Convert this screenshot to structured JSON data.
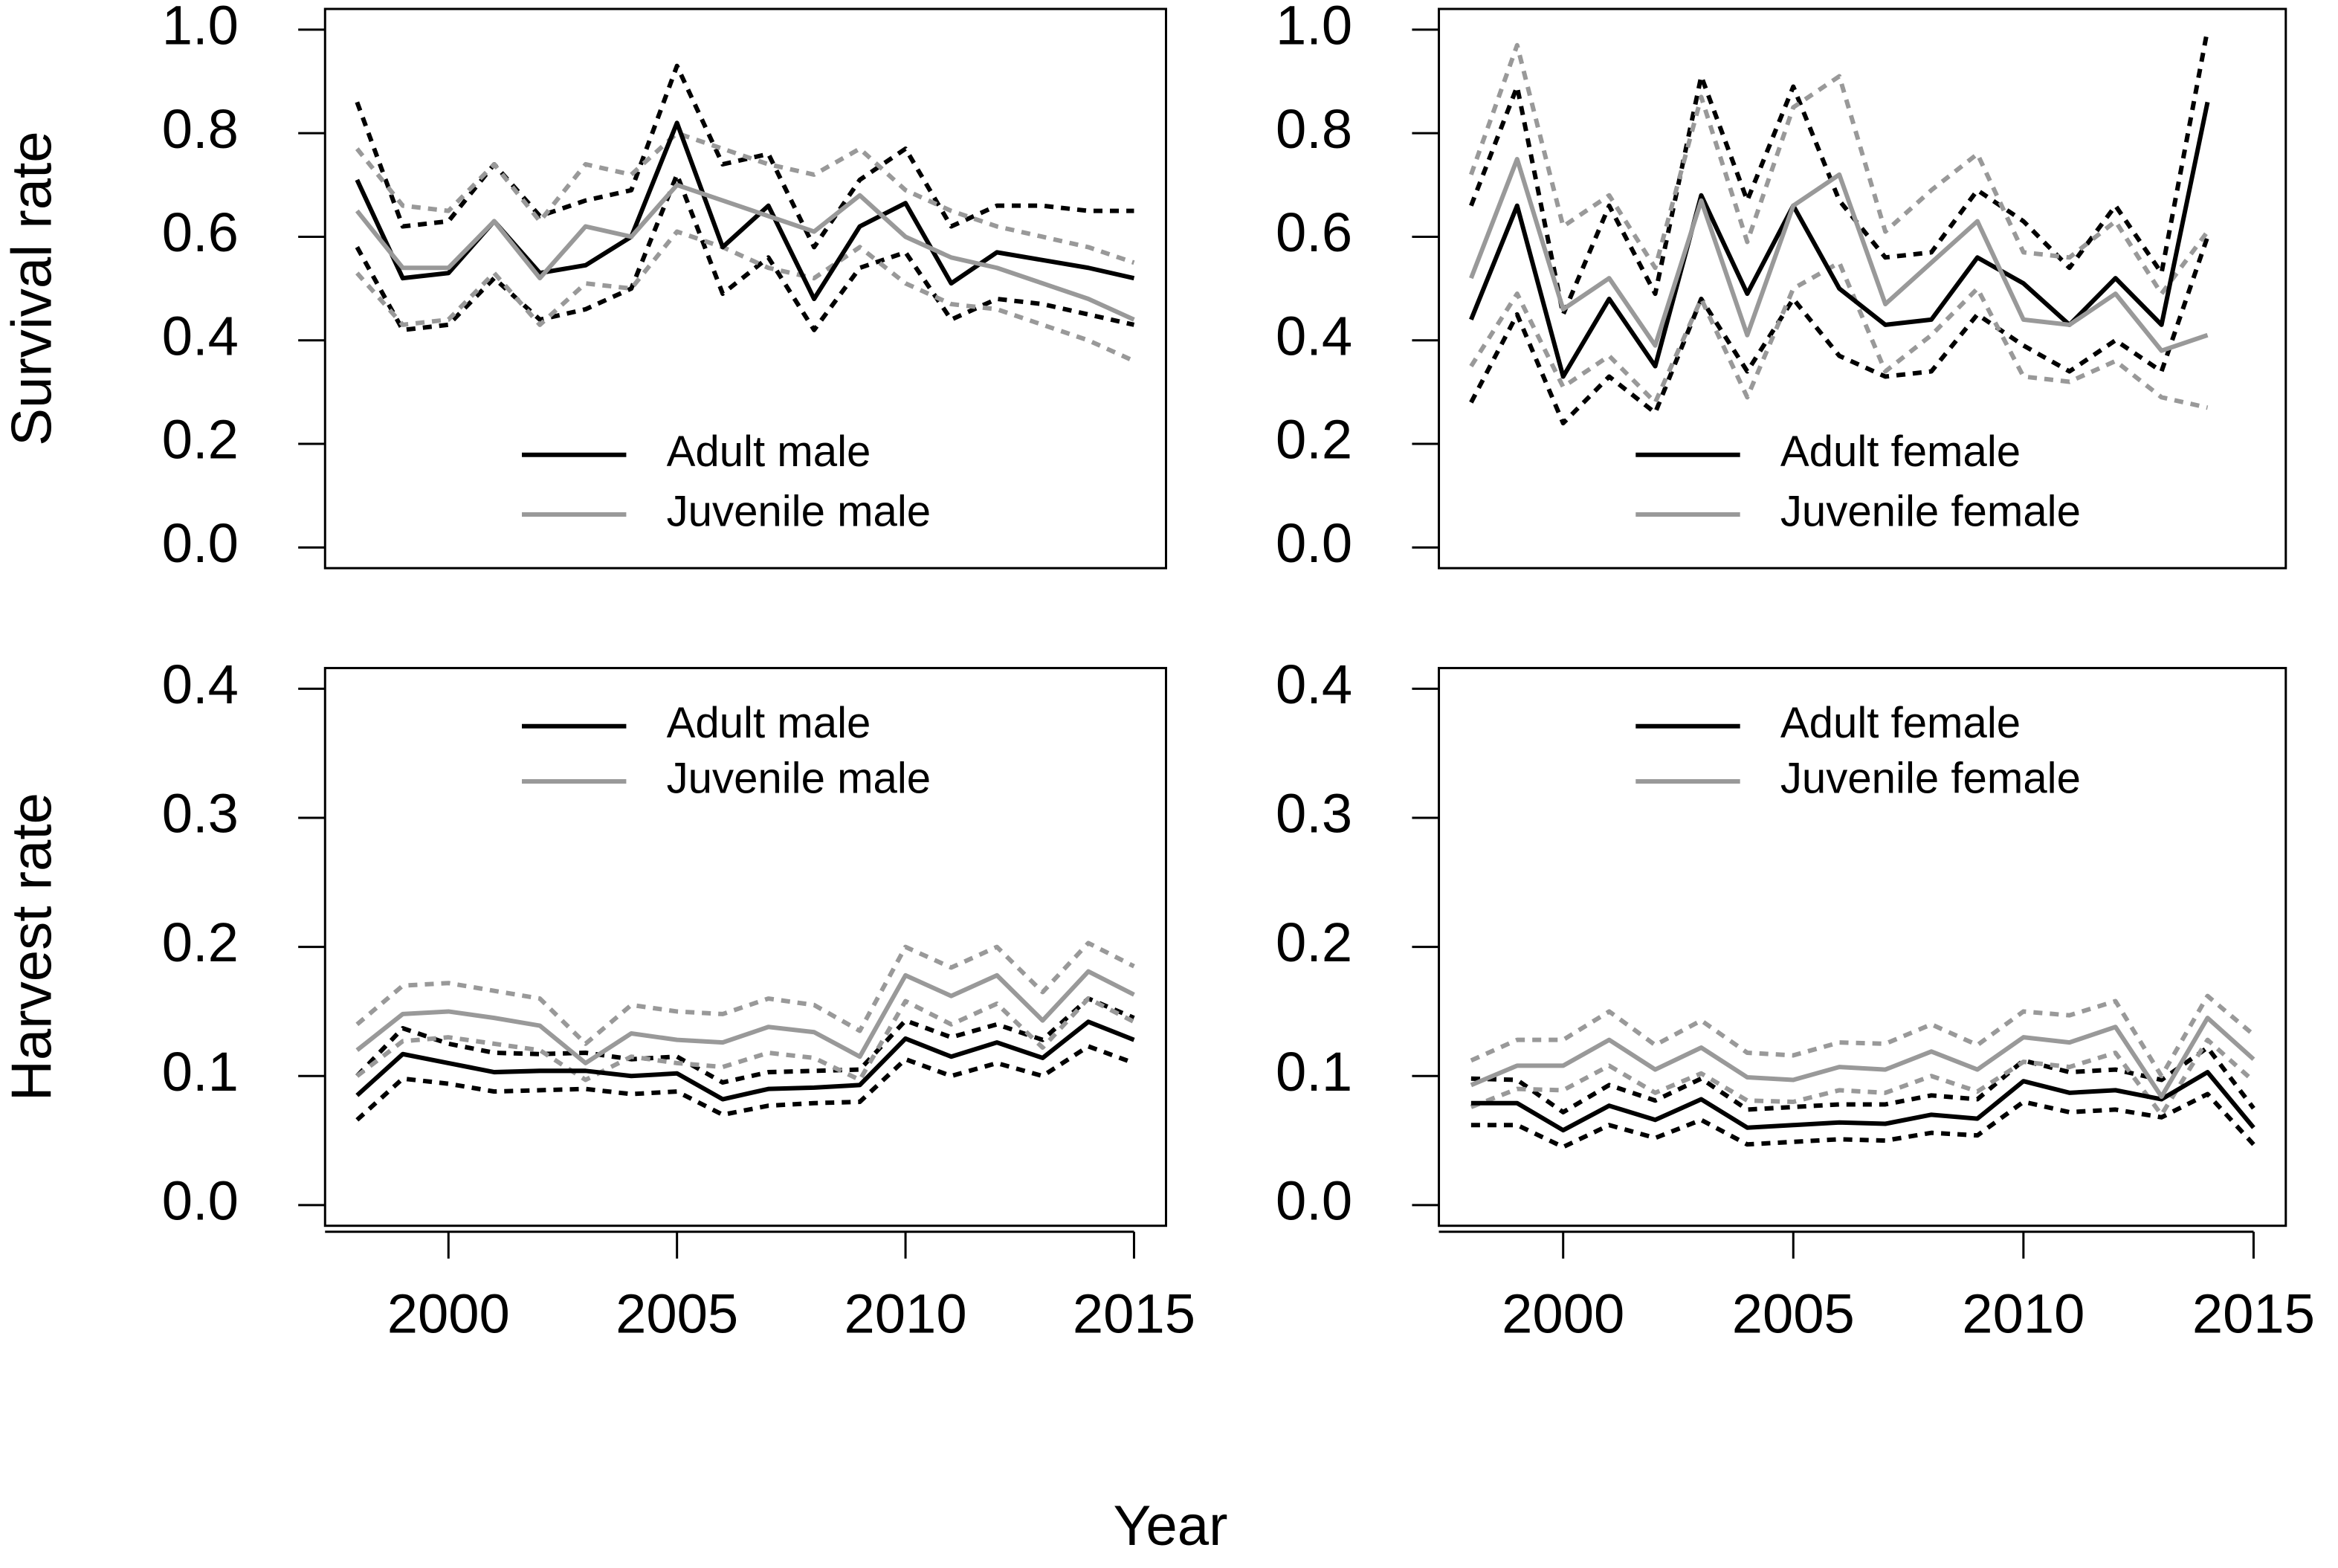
{
  "xlabel": "Year",
  "chart_data": [
    {
      "type": "line",
      "ylabel": "Survival rate",
      "legend": "bottom",
      "x": [
        1998,
        1999,
        2000,
        2001,
        2002,
        2003,
        2004,
        2005,
        2006,
        2007,
        2008,
        2009,
        2010,
        2011,
        2012,
        2013,
        2014,
        2015
      ],
      "xlim": [
        1997.3,
        2015.7
      ],
      "ylim": [
        -0.04,
        1.04
      ],
      "yticks": [
        {
          "value": 0,
          "label": "0.0"
        },
        0.2,
        0.4,
        0.6,
        0.8,
        {
          "value": 1,
          "label": "1.0"
        }
      ],
      "series": [
        {
          "name": "Adult male",
          "color": "#000000",
          "values": [
            0.71,
            0.52,
            0.53,
            0.63,
            0.53,
            0.545,
            0.6,
            0.82,
            0.58,
            0.66,
            0.48,
            0.62,
            0.665,
            0.51,
            0.57,
            0.555,
            0.54,
            0.52
          ]
        },
        {
          "name": "Juvenile male",
          "color": "#999999",
          "values": [
            0.65,
            0.54,
            0.54,
            0.63,
            0.52,
            0.62,
            0.6,
            0.7,
            0.67,
            0.64,
            0.61,
            0.68,
            0.6,
            0.56,
            0.54,
            0.51,
            0.48,
            0.44
          ]
        },
        {
          "color": "#000000",
          "dash": true,
          "values": [
            0.86,
            0.62,
            0.63,
            0.74,
            0.64,
            0.67,
            0.69,
            0.93,
            0.74,
            0.76,
            0.58,
            0.71,
            0.77,
            0.62,
            0.66,
            0.66,
            0.65,
            0.65
          ]
        },
        {
          "color": "#000000",
          "dash": true,
          "values": [
            0.58,
            0.42,
            0.43,
            0.52,
            0.44,
            0.46,
            0.5,
            0.72,
            0.49,
            0.56,
            0.42,
            0.54,
            0.57,
            0.44,
            0.48,
            0.47,
            0.45,
            0.43
          ]
        },
        {
          "color": "#999999",
          "dash": true,
          "values": [
            0.77,
            0.66,
            0.65,
            0.74,
            0.63,
            0.74,
            0.72,
            0.8,
            0.77,
            0.74,
            0.72,
            0.77,
            0.69,
            0.65,
            0.62,
            0.6,
            0.58,
            0.55
          ]
        },
        {
          "color": "#999999",
          "dash": true,
          "values": [
            0.53,
            0.43,
            0.44,
            0.53,
            0.43,
            0.51,
            0.5,
            0.61,
            0.58,
            0.54,
            0.52,
            0.58,
            0.51,
            0.47,
            0.46,
            0.43,
            0.4,
            0.36
          ]
        }
      ]
    },
    {
      "type": "line",
      "legend": "bottom",
      "x": [
        1998,
        1999,
        2000,
        2001,
        2002,
        2003,
        2004,
        2005,
        2006,
        2007,
        2008,
        2009,
        2010,
        2011,
        2012,
        2013,
        2014,
        2015
      ],
      "xlim": [
        1997.3,
        2015.7
      ],
      "ylim": [
        -0.04,
        1.04
      ],
      "yticks": [
        {
          "value": 0,
          "label": "0.0"
        },
        0.2,
        0.4,
        0.6,
        0.8,
        {
          "value": 1,
          "label": "1.0"
        }
      ],
      "series": [
        {
          "name": "Adult female",
          "color": "#000000",
          "values": [
            0.44,
            0.66,
            0.33,
            0.48,
            0.35,
            0.68,
            0.49,
            0.66,
            0.5,
            0.43,
            0.44,
            0.56,
            0.51,
            0.43,
            0.52,
            0.43,
            0.86,
            null
          ]
        },
        {
          "name": "Juvenile female",
          "color": "#999999",
          "values": [
            0.52,
            0.75,
            0.46,
            0.52,
            0.39,
            0.67,
            0.41,
            0.66,
            0.72,
            0.47,
            0.55,
            0.63,
            0.44,
            0.43,
            0.49,
            0.38,
            0.41,
            null
          ]
        },
        {
          "color": "#000000",
          "dash": true,
          "values": [
            0.66,
            0.89,
            0.45,
            0.66,
            0.49,
            0.91,
            0.67,
            0.89,
            0.67,
            0.56,
            0.57,
            0.69,
            0.63,
            0.54,
            0.66,
            0.53,
            1.0,
            null
          ]
        },
        {
          "color": "#000000",
          "dash": true,
          "values": [
            0.28,
            0.45,
            0.24,
            0.33,
            0.26,
            0.48,
            0.34,
            0.48,
            0.37,
            0.33,
            0.34,
            0.45,
            0.39,
            0.34,
            0.4,
            0.34,
            0.6,
            null
          ]
        },
        {
          "color": "#999999",
          "dash": true,
          "values": [
            0.72,
            0.97,
            0.62,
            0.68,
            0.54,
            0.87,
            0.59,
            0.85,
            0.91,
            0.61,
            0.69,
            0.76,
            0.57,
            0.56,
            0.63,
            0.49,
            0.61,
            null
          ]
        },
        {
          "color": "#999999",
          "dash": true,
          "values": [
            0.35,
            0.49,
            0.31,
            0.37,
            0.28,
            0.48,
            0.29,
            0.5,
            0.55,
            0.34,
            0.41,
            0.5,
            0.33,
            0.32,
            0.36,
            0.29,
            0.27,
            null
          ]
        }
      ]
    },
    {
      "type": "line",
      "ylabel": "Harvest rate",
      "legend": "top",
      "x": [
        1998,
        1999,
        2000,
        2001,
        2002,
        2003,
        2004,
        2005,
        2006,
        2007,
        2008,
        2009,
        2010,
        2011,
        2012,
        2013,
        2014,
        2015
      ],
      "xlim": [
        1997.3,
        2015.7
      ],
      "ylim": [
        -0.016,
        0.416
      ],
      "xticks": [
        2000,
        2005,
        2010,
        2015
      ],
      "yticks": [
        {
          "value": 0,
          "label": "0.0"
        },
        0.1,
        0.2,
        0.3,
        0.4
      ],
      "series": [
        {
          "name": "Adult male",
          "color": "#000000",
          "values": [
            0.085,
            0.117,
            0.11,
            0.103,
            0.104,
            0.104,
            0.1,
            0.102,
            0.082,
            0.09,
            0.091,
            0.093,
            0.129,
            0.115,
            0.126,
            0.114,
            0.142,
            0.128
          ]
        },
        {
          "name": "Juvenile male",
          "color": "#999999",
          "values": [
            0.12,
            0.148,
            0.15,
            0.145,
            0.139,
            0.11,
            0.133,
            0.128,
            0.126,
            0.138,
            0.134,
            0.115,
            0.178,
            0.162,
            0.178,
            0.143,
            0.181,
            0.163
          ]
        },
        {
          "color": "#000000",
          "dash": true,
          "values": [
            0.1,
            0.137,
            0.125,
            0.118,
            0.117,
            0.118,
            0.113,
            0.115,
            0.095,
            0.103,
            0.104,
            0.105,
            0.143,
            0.13,
            0.14,
            0.128,
            0.16,
            0.145
          ]
        },
        {
          "color": "#000000",
          "dash": true,
          "values": [
            0.066,
            0.098,
            0.094,
            0.088,
            0.089,
            0.09,
            0.086,
            0.088,
            0.07,
            0.077,
            0.079,
            0.08,
            0.113,
            0.1,
            0.11,
            0.1,
            0.123,
            0.11
          ]
        },
        {
          "color": "#999999",
          "dash": true,
          "values": [
            0.14,
            0.17,
            0.172,
            0.166,
            0.16,
            0.125,
            0.155,
            0.15,
            0.148,
            0.16,
            0.155,
            0.135,
            0.2,
            0.184,
            0.2,
            0.165,
            0.203,
            0.185
          ]
        },
        {
          "color": "#999999",
          "dash": true,
          "values": [
            0.1,
            0.127,
            0.13,
            0.125,
            0.12,
            0.097,
            0.115,
            0.11,
            0.107,
            0.118,
            0.114,
            0.097,
            0.158,
            0.14,
            0.156,
            0.122,
            0.16,
            0.142
          ]
        }
      ]
    },
    {
      "type": "line",
      "legend": "top",
      "x": [
        1998,
        1999,
        2000,
        2001,
        2002,
        2003,
        2004,
        2005,
        2006,
        2007,
        2008,
        2009,
        2010,
        2011,
        2012,
        2013,
        2014,
        2015
      ],
      "xlim": [
        1997.3,
        2015.7
      ],
      "ylim": [
        -0.016,
        0.416
      ],
      "xticks": [
        2000,
        2005,
        2010,
        2015
      ],
      "yticks": [
        {
          "value": 0,
          "label": "0.0"
        },
        0.1,
        0.2,
        0.3,
        0.4
      ],
      "series": [
        {
          "name": "Adult female",
          "color": "#000000",
          "values": [
            0.079,
            0.079,
            0.058,
            0.077,
            0.066,
            0.082,
            0.06,
            0.062,
            0.064,
            0.063,
            0.07,
            0.067,
            0.096,
            0.087,
            0.089,
            0.082,
            0.103,
            0.06
          ]
        },
        {
          "name": "Juvenile female",
          "color": "#999999",
          "values": [
            0.093,
            0.108,
            0.108,
            0.128,
            0.105,
            0.122,
            0.099,
            0.097,
            0.107,
            0.105,
            0.119,
            0.105,
            0.13,
            0.126,
            0.138,
            0.084,
            0.145,
            0.113
          ]
        },
        {
          "color": "#000000",
          "dash": true,
          "values": [
            0.098,
            0.097,
            0.072,
            0.093,
            0.081,
            0.098,
            0.074,
            0.076,
            0.078,
            0.078,
            0.085,
            0.082,
            0.112,
            0.103,
            0.105,
            0.097,
            0.122,
            0.075
          ]
        },
        {
          "color": "#000000",
          "dash": true,
          "values": [
            0.062,
            0.062,
            0.045,
            0.062,
            0.052,
            0.066,
            0.047,
            0.049,
            0.051,
            0.05,
            0.056,
            0.054,
            0.08,
            0.072,
            0.074,
            0.068,
            0.086,
            0.047
          ]
        },
        {
          "color": "#999999",
          "dash": true,
          "values": [
            0.112,
            0.128,
            0.128,
            0.15,
            0.124,
            0.143,
            0.118,
            0.116,
            0.126,
            0.125,
            0.14,
            0.124,
            0.15,
            0.147,
            0.158,
            0.1,
            0.162,
            0.132
          ]
        },
        {
          "color": "#999999",
          "dash": true,
          "values": [
            0.076,
            0.09,
            0.089,
            0.108,
            0.087,
            0.102,
            0.081,
            0.08,
            0.089,
            0.087,
            0.1,
            0.088,
            0.111,
            0.107,
            0.118,
            0.07,
            0.128,
            0.096
          ]
        }
      ]
    }
  ]
}
